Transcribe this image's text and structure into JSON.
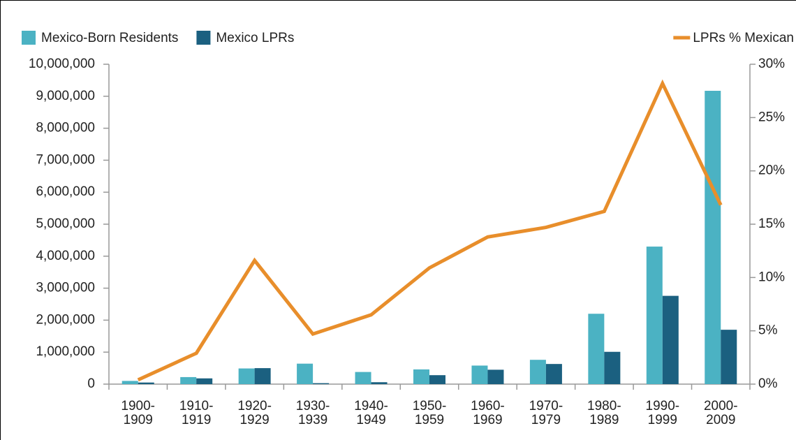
{
  "chart_data": {
    "type": "bar",
    "categories": [
      "1900-1909",
      "1910-1919",
      "1920-1929",
      "1930-1939",
      "1940-1949",
      "1950-1959",
      "1960-1969",
      "1970-1979",
      "1980-1989",
      "1990-1999",
      "2000-2009"
    ],
    "series": [
      {
        "name": "Mexico-Born Residents",
        "color": "#4bb2c3",
        "values": [
          100000,
          220000,
          490000,
          640000,
          380000,
          460000,
          580000,
          760000,
          2200000,
          4300000,
          9170000
        ]
      },
      {
        "name": "Mexico LPRs",
        "color": "#1b6080",
        "values": [
          50000,
          180000,
          500000,
          30000,
          60000,
          280000,
          450000,
          630000,
          1010000,
          2760000,
          1700000
        ]
      },
      {
        "name": "LPRs % Mexican",
        "color": "#e88e2b",
        "type": "line",
        "axis": "y2",
        "values": [
          0.4,
          2.9,
          11.6,
          4.7,
          6.5,
          10.9,
          13.8,
          14.7,
          16.2,
          28.2,
          16.8
        ]
      }
    ],
    "ylim": [
      0,
      10000000
    ],
    "yticks": [
      0,
      {
        "value": 1000000,
        "label": "1,000,000"
      },
      {
        "value": 2000000,
        "label": "2,000,000"
      },
      {
        "value": 3000000,
        "label": "3,000,000"
      },
      {
        "value": 4000000,
        "label": "4,000,000"
      },
      {
        "value": 5000000,
        "label": "5,000,000"
      },
      {
        "value": 6000000,
        "label": "6,000,000"
      },
      {
        "value": 7000000,
        "label": "7,000,000"
      },
      {
        "value": 8000000,
        "label": "8,000,000"
      },
      {
        "value": 9000000,
        "label": "9,000,000"
      },
      {
        "value": 10000000,
        "label": "10,000,000"
      }
    ],
    "y2lim": [
      0,
      30
    ],
    "y2ticks": [
      {
        "value": 0,
        "label": "0%"
      },
      {
        "value": 5,
        "label": "5%"
      },
      {
        "value": 10,
        "label": "10%"
      },
      {
        "value": 15,
        "label": "15%"
      },
      {
        "value": 20,
        "label": "20%"
      },
      {
        "value": 25,
        "label": "25%"
      },
      {
        "value": 30,
        "label": "30%"
      }
    ]
  }
}
